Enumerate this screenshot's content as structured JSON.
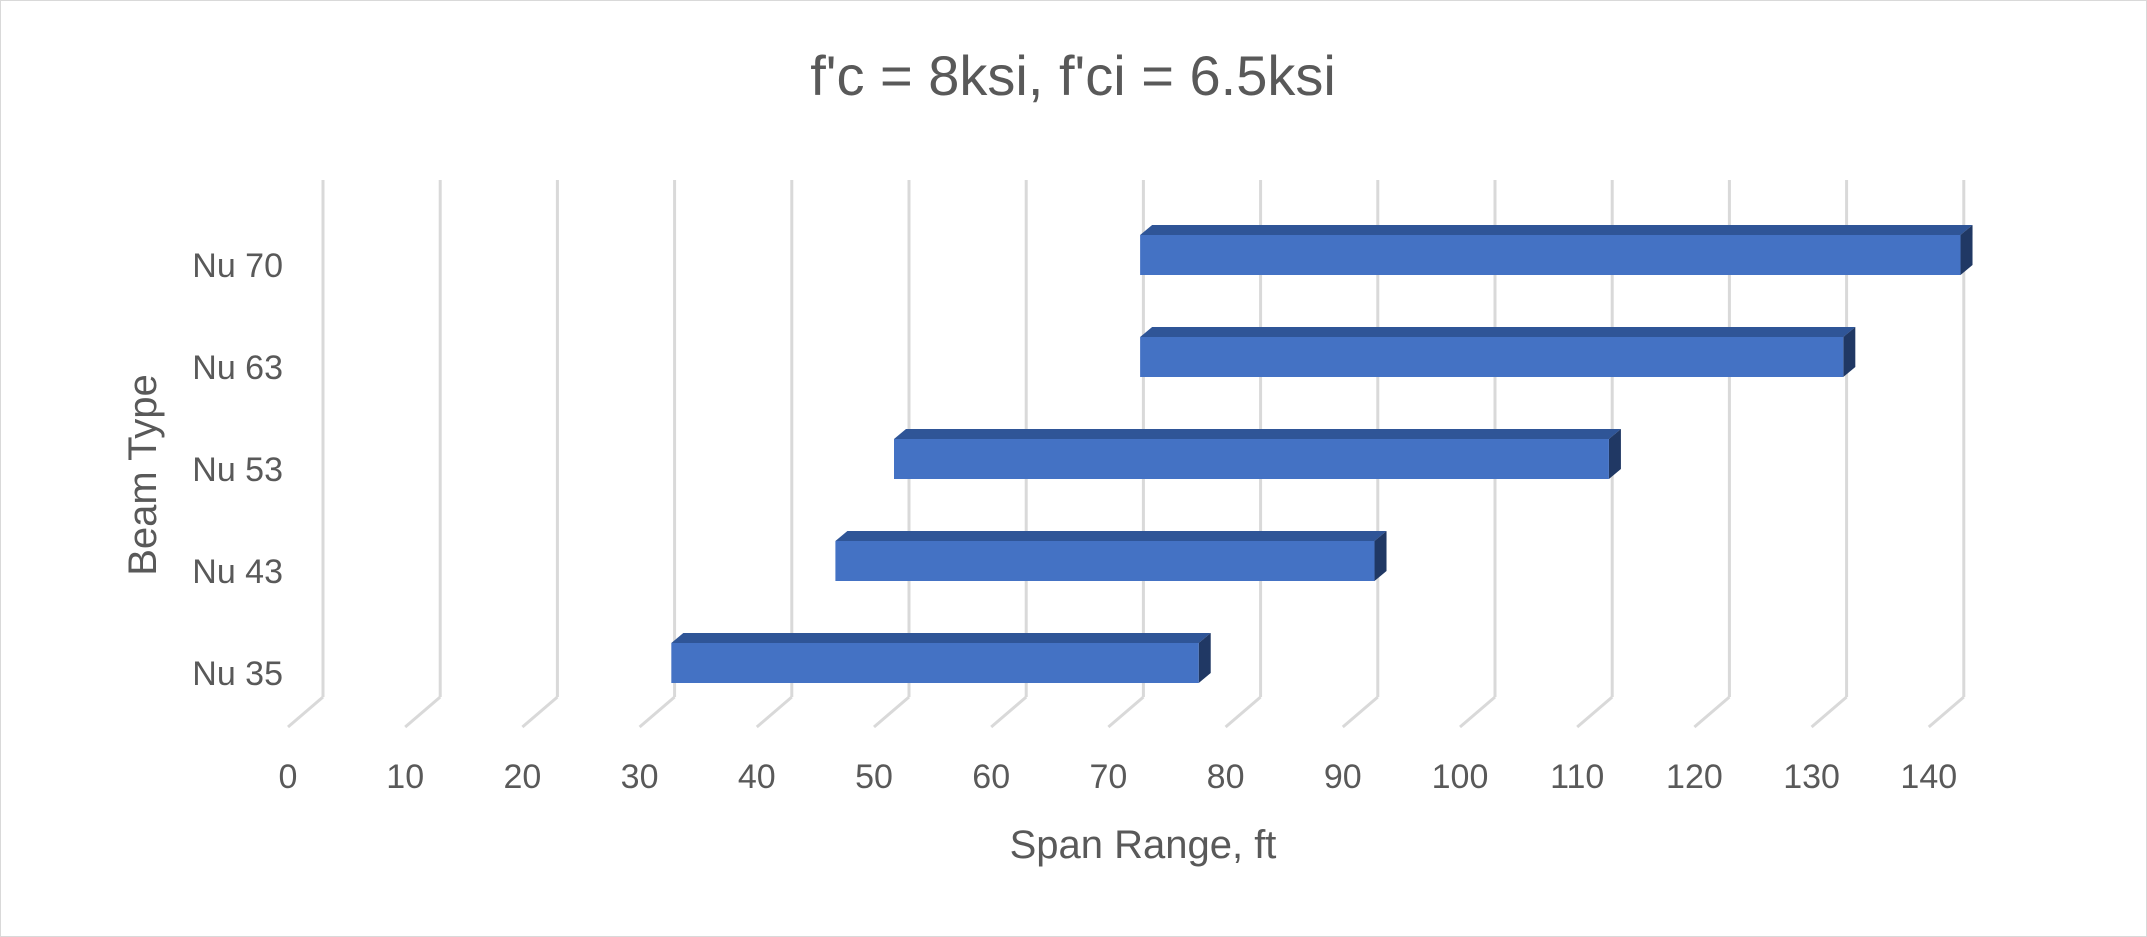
{
  "chart_data": {
    "type": "bar",
    "orientation": "horizontal",
    "style": "3d-floating-range",
    "title": "f'c = 8ksi, f'ci = 6.5ksi",
    "xlabel": "Span Range, ft",
    "ylabel": "Beam Type",
    "xlim": [
      0,
      140
    ],
    "x_ticks": [
      "0",
      "10",
      "20",
      "30",
      "40",
      "50",
      "60",
      "70",
      "80",
      "90",
      "100",
      "110",
      "120",
      "130",
      "140"
    ],
    "grid": "vertical",
    "legend": "none",
    "categories": [
      "Nu 35",
      "Nu 43",
      "Nu 53",
      "Nu 63",
      "Nu 70"
    ],
    "ranges": [
      {
        "category": "Nu 35",
        "start": 31,
        "end": 76
      },
      {
        "category": "Nu 43",
        "start": 45,
        "end": 91
      },
      {
        "category": "Nu 53",
        "start": 50,
        "end": 111
      },
      {
        "category": "Nu 63",
        "start": 71,
        "end": 131
      },
      {
        "category": "Nu 70",
        "start": 71,
        "end": 141
      }
    ],
    "colors": {
      "bar_front": "#4472c4",
      "bar_top": "#2f5597",
      "bar_side": "#203864",
      "grid": "#d9d9d9",
      "text": "#595959"
    }
  }
}
